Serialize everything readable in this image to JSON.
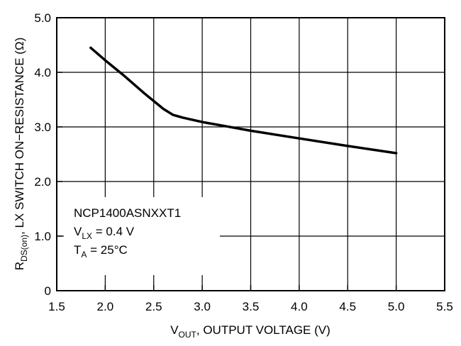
{
  "chart_data": {
    "type": "line",
    "x": [
      1.85,
      2.0,
      2.2,
      2.4,
      2.6,
      2.7,
      2.8,
      3.0,
      3.25,
      3.5,
      4.0,
      4.5,
      5.0
    ],
    "series": [
      {
        "values": [
          4.45,
          4.22,
          3.93,
          3.62,
          3.33,
          3.22,
          3.17,
          3.09,
          3.01,
          2.93,
          2.79,
          2.65,
          2.52
        ],
        "color": "#000000"
      }
    ],
    "xlim": [
      1.5,
      5.5
    ],
    "ylim": [
      0,
      5.0
    ],
    "x_ticks": [
      "1.5",
      "2.0",
      "2.5",
      "3.0",
      "3.5",
      "4.0",
      "4.5",
      "5.0",
      "5.5"
    ],
    "y_ticks": [
      "0",
      "1.0",
      "2.0",
      "3.0",
      "4.0",
      "5.0"
    ],
    "xlabel": {
      "pre": "V",
      "sub": "OUT",
      "post": ", OUTPUT VOLTAGE (V)"
    },
    "ylabel": {
      "pre": "R",
      "sub": "DS(on)",
      "post": ", LX SWITCH ON−RESISTANCE (Ω)"
    },
    "annotation": {
      "line1": "NCP1400ASNXXT1",
      "line2": {
        "pre": "V",
        "sub": "LX",
        "post": " = 0.4 V"
      },
      "line3": {
        "pre": "T",
        "sub": "A",
        "post": " = 25°C"
      }
    },
    "grid": true
  }
}
